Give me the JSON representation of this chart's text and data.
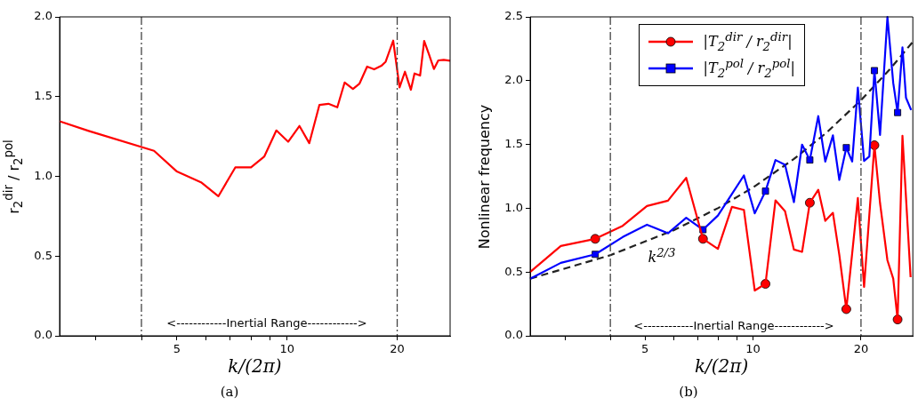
{
  "chart_data": [
    {
      "type": "line",
      "xlabel": "k/(2π)",
      "ylabel": "r$_{2}$$^{dir}$ / r$_{2}$$^{pol}$",
      "log": "x",
      "grid": false,
      "xlim": [
        2.39,
        27.9
      ],
      "xticks": [
        {
          "value": 3,
          "label": null
        },
        {
          "value": 4,
          "label": null
        },
        5,
        {
          "value": 6,
          "label": null
        },
        {
          "value": 7,
          "label": null
        },
        {
          "value": 8,
          "label": null
        },
        {
          "value": 9,
          "label": null
        },
        10,
        20
      ],
      "ylim": [
        0,
        2
      ],
      "yticks": [
        {
          "value": 0,
          "label": "0.0"
        },
        0.5,
        {
          "value": 1,
          "label": "1.0"
        },
        1.5,
        {
          "value": 2,
          "label": "2.0"
        }
      ],
      "x": [
        2.39,
        2.87,
        4.33,
        5.0,
        5.82,
        6.49,
        7.22,
        7.97,
        8.67,
        9.35,
        10.07,
        10.81,
        11.5,
        12.26,
        12.97,
        13.72,
        14.37,
        15.14,
        15.78,
        16.55,
        17.3,
        18.1,
        18.6,
        19.5,
        20.3,
        21.0,
        21.8,
        22.3,
        23.1,
        23.7,
        24.4,
        25.2,
        25.9,
        26.8,
        27.9
      ],
      "series": [
        {
          "color": "#ff0000",
          "values": [
            1.345,
            1.285,
            1.16,
            1.03,
            0.963,
            0.875,
            1.056,
            1.056,
            1.125,
            1.288,
            1.217,
            1.316,
            1.208,
            1.448,
            1.455,
            1.433,
            1.589,
            1.548,
            1.582,
            1.688,
            1.671,
            1.693,
            1.719,
            1.851,
            1.558,
            1.656,
            1.543,
            1.645,
            1.632,
            1.849,
            1.768,
            1.673,
            1.727,
            1.73,
            1.725
          ]
        }
      ],
      "ref_lines": [
        {
          "axis": "x",
          "value": 4,
          "color": "#444444",
          "line_style": "dashed"
        },
        {
          "axis": "x",
          "value": 20,
          "color": "#444444",
          "line_style": "dashed"
        }
      ],
      "annotations": [
        "<------------Inertial Range------------>",
        "(a)"
      ]
    },
    {
      "type": "line",
      "xlabel": "k/(2π)",
      "ylabel": "Nonlinear frequency",
      "log": "x",
      "grid": false,
      "legend": "top",
      "xlim": [
        2.39,
        27.9
      ],
      "xticks": [
        {
          "value": 3,
          "label": null
        },
        {
          "value": 4,
          "label": null
        },
        5,
        {
          "value": 6,
          "label": null
        },
        {
          "value": 7,
          "label": null
        },
        {
          "value": 8,
          "label": null
        },
        {
          "value": 9,
          "label": null
        },
        10,
        20
      ],
      "ylim": [
        0,
        2.5
      ],
      "yticks": [
        {
          "value": 0,
          "label": "0.0"
        },
        0.5,
        {
          "value": 1,
          "label": "1.0"
        },
        1.5,
        {
          "value": 2,
          "label": "2.0"
        },
        2.5
      ],
      "series": [
        {
          "name": "|T$_{2}$$^{dir}$ / r$_{2}$$^{dir}$|",
          "color": "#ff0000",
          "x": [
            2.39,
            2.91,
            3.63,
            4.33,
            5.06,
            5.79,
            6.51,
            7.25,
            7.98,
            8.73,
            9.43,
            10.11,
            10.83,
            11.55,
            12.28,
            13.0,
            13.7,
            14.4,
            15.2,
            15.9,
            16.7,
            17.4,
            18.2,
            18.9,
            19.6,
            20.4,
            21.8,
            22.6,
            23.7,
            24.6,
            25.3,
            26.1,
            27.5
          ],
          "values": [
            0.5,
            0.704,
            0.76,
            0.862,
            1.018,
            1.059,
            1.238,
            0.76,
            0.681,
            1.011,
            0.987,
            0.355,
            0.407,
            1.062,
            0.976,
            0.676,
            0.658,
            1.043,
            1.145,
            0.901,
            0.964,
            0.634,
            0.209,
            0.646,
            1.08,
            0.383,
            1.494,
            1.041,
            0.592,
            0.448,
            0.128,
            1.568,
            0.46
          ]
        },
        {
          "name": "|T$_{2}$$^{pol}$ / r$_{2}$$^{pol}$|",
          "color": "#0000ff",
          "x": [
            2.39,
            2.91,
            3.63,
            4.33,
            5.06,
            5.79,
            6.51,
            7.25,
            7.98,
            8.73,
            9.43,
            10.11,
            10.83,
            11.55,
            12.28,
            13.0,
            13.7,
            14.4,
            15.2,
            15.9,
            16.7,
            17.4,
            18.2,
            18.9,
            19.6,
            20.4,
            21.1,
            21.8,
            22.6,
            23.7,
            24.6,
            25.3,
            26.1,
            26.7,
            27.6
          ],
          "values": [
            0.448,
            0.572,
            0.639,
            0.774,
            0.871,
            0.804,
            0.925,
            0.832,
            0.943,
            1.111,
            1.257,
            0.96,
            1.134,
            1.378,
            1.341,
            1.048,
            1.499,
            1.378,
            1.722,
            1.366,
            1.571,
            1.222,
            1.475,
            1.366,
            1.945,
            1.371,
            1.406,
            2.079,
            1.575,
            2.5,
            1.982,
            1.75,
            2.261,
            1.866,
            1.77
          ]
        },
        {
          "type": "scatter",
          "color": "#ff0000",
          "marker": "circle",
          "x": [
            3.63,
            7.25,
            10.83,
            14.4,
            18.2,
            21.8,
            25.3
          ],
          "values": [
            0.76,
            0.76,
            0.407,
            1.043,
            0.209,
            1.494,
            0.128
          ]
        },
        {
          "type": "scatter",
          "color": "#0000ff",
          "marker": "square",
          "x": [
            3.63,
            7.25,
            10.83,
            14.4,
            18.2,
            21.8,
            25.3
          ],
          "values": [
            0.639,
            0.832,
            1.134,
            1.378,
            1.475,
            2.079,
            1.75
          ]
        },
        {
          "color": "#222222",
          "line_style": "dashed",
          "x": [
            2.39,
            4,
            6,
            8,
            10,
            13,
            16,
            20,
            24,
            27.9
          ],
          "values": [
            0.448,
            0.632,
            0.827,
            1.002,
            1.163,
            1.386,
            1.591,
            1.847,
            2.085,
            2.305
          ]
        }
      ],
      "ref_lines": [
        {
          "axis": "x",
          "value": 4,
          "color": "#444444",
          "line_style": "dashed"
        },
        {
          "axis": "x",
          "value": 20,
          "color": "#444444",
          "line_style": "dashed"
        }
      ],
      "annotations": [
        "k$^{2/3}$",
        "<------------Inertial Range------------>",
        "(b)"
      ]
    }
  ]
}
